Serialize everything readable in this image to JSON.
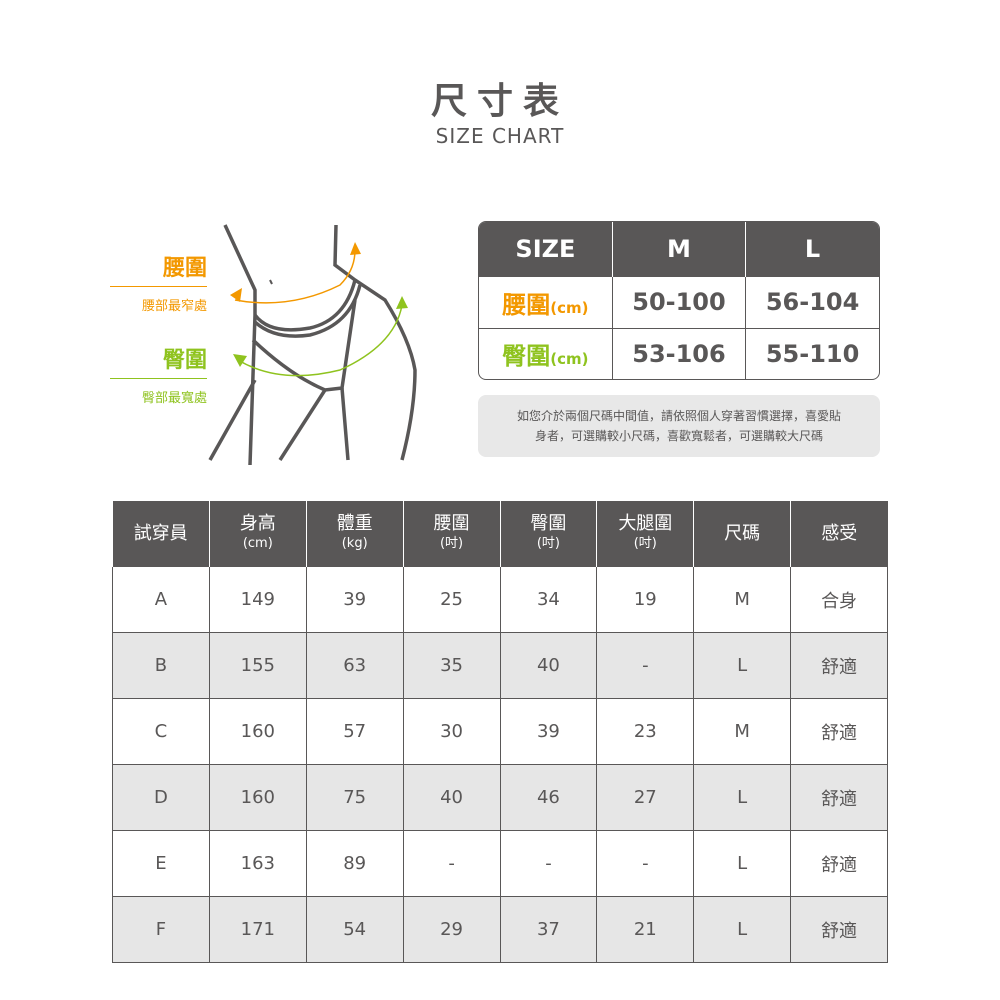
{
  "header": {
    "title": "尺寸表",
    "subtitle": "SIZE CHART"
  },
  "figure": {
    "waist": {
      "label": "腰圍",
      "desc": "腰部最窄處",
      "color": "#f39800"
    },
    "hip": {
      "label": "臀圍",
      "desc": "臀部最寬處",
      "color": "#8fc31f"
    }
  },
  "size_chart": {
    "headers": [
      "SIZE",
      "M",
      "L"
    ],
    "rows": [
      {
        "label": "腰圍",
        "unit": "(cm)",
        "color": "#f39800",
        "values": [
          "50-100",
          "56-104"
        ]
      },
      {
        "label": "臀圍",
        "unit": "(cm)",
        "color": "#8fc31f",
        "values": [
          "53-106",
          "55-110"
        ]
      }
    ],
    "note_line1": "如您介於兩個尺碼中間值，請依照個人穿著習慣選擇，喜愛貼",
    "note_line2": "身者，可選購較小尺碼，喜歡寬鬆者，可選購較大尺碼"
  },
  "trial_table": {
    "headers": [
      {
        "label": "試穿員",
        "unit": ""
      },
      {
        "label": "身高",
        "unit": "(cm)"
      },
      {
        "label": "體重",
        "unit": "(kg)"
      },
      {
        "label": "腰圍",
        "unit": "(吋)"
      },
      {
        "label": "臀圍",
        "unit": "(吋)"
      },
      {
        "label": "大腿圍",
        "unit": "(吋)"
      },
      {
        "label": "尺碼",
        "unit": ""
      },
      {
        "label": "感受",
        "unit": ""
      }
    ],
    "rows": [
      [
        "A",
        "149",
        "39",
        "25",
        "34",
        "19",
        "M",
        "合身"
      ],
      [
        "B",
        "155",
        "63",
        "35",
        "40",
        "-",
        "L",
        "舒適"
      ],
      [
        "C",
        "160",
        "57",
        "30",
        "39",
        "23",
        "M",
        "舒適"
      ],
      [
        "D",
        "160",
        "75",
        "40",
        "46",
        "27",
        "L",
        "舒適"
      ],
      [
        "E",
        "163",
        "89",
        "-",
        "-",
        "-",
        "L",
        "舒適"
      ],
      [
        "F",
        "171",
        "54",
        "29",
        "37",
        "21",
        "L",
        "舒適"
      ]
    ]
  }
}
